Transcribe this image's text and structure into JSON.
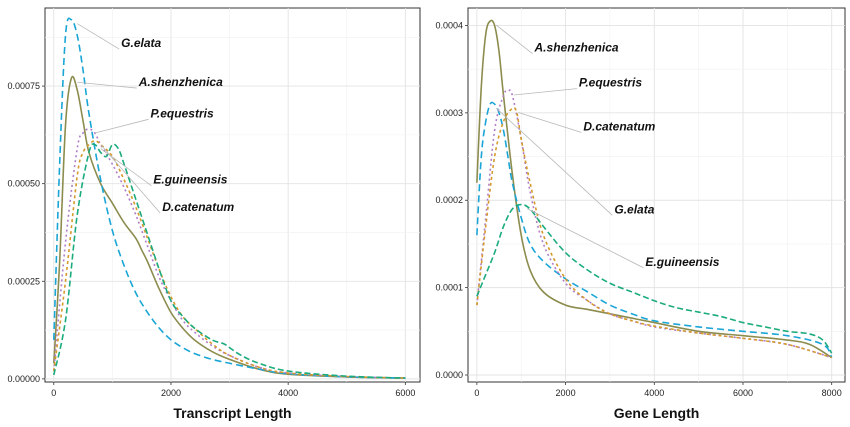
{
  "chart_data": [
    {
      "type": "line",
      "panel": "left",
      "xlabel": "Transcript Length",
      "ylabel": "",
      "xlim": [
        -150,
        6250
      ],
      "ylim": [
        -8e-06,
        0.00095
      ],
      "xticks": [
        0,
        2000,
        4000,
        6000
      ],
      "yticks": [
        0,
        0.00025,
        0.0005,
        0.00075
      ],
      "ytick_labels": [
        "0.00000",
        "0.00025",
        "0.00050",
        "0.00075"
      ],
      "xtick_labels": [
        "0",
        "2000",
        "4000",
        "6000"
      ],
      "grid": true,
      "legend": "none",
      "series": [
        {
          "name": "A.shenzhenica",
          "color": "#8c8c4e",
          "dash": "solid",
          "x": [
            0,
            100,
            200,
            300,
            400,
            500,
            600,
            800,
            1000,
            1200,
            1400,
            1500,
            1600,
            1800,
            2000,
            2200,
            2400,
            2700,
            3000,
            3500,
            4000,
            5000,
            6000
          ],
          "y": [
            4e-05,
            0.0003,
            0.00065,
            0.00077,
            0.00074,
            0.00066,
            0.00058,
            0.0005,
            0.00045,
            0.0004,
            0.00036,
            0.00033,
            0.0003,
            0.00023,
            0.00017,
            0.00013,
            0.0001,
            7e-05,
            5e-05,
            2.5e-05,
            1.2e-05,
            5e-06,
            2e-06
          ]
        },
        {
          "name": "G.elata",
          "color": "#1aa5d6",
          "dash": "7,4",
          "x": [
            0,
            100,
            200,
            300,
            400,
            500,
            600,
            800,
            1000,
            1200,
            1400,
            1600,
            1800,
            2000,
            2200,
            2400,
            2700,
            3000,
            3500,
            4000,
            5000,
            6000
          ],
          "y": [
            0.0001,
            0.00055,
            0.00088,
            0.00092,
            0.00088,
            0.00079,
            0.00068,
            0.00051,
            0.00038,
            0.00029,
            0.00022,
            0.00017,
            0.00013,
            0.0001,
            8e-05,
            6.5e-05,
            5e-05,
            4e-05,
            2.5e-05,
            1.3e-05,
            5e-06,
            2e-06
          ]
        },
        {
          "name": "P.equestris",
          "color": "#b07ec8",
          "dash": "2,3",
          "x": [
            0,
            200,
            400,
            500,
            600,
            700,
            800,
            1000,
            1200,
            1400,
            1600,
            1800,
            2000,
            2200,
            2400,
            2700,
            3000,
            3500,
            4000,
            5000,
            6000
          ],
          "y": [
            2e-05,
            0.00035,
            0.00059,
            0.00063,
            0.00064,
            0.00063,
            0.0006,
            0.00055,
            0.00049,
            0.00042,
            0.00034,
            0.00026,
            0.0002,
            0.00015,
            0.00012,
            8.5e-05,
            6e-05,
            3e-05,
            1.5e-05,
            6e-06,
            2e-06
          ]
        },
        {
          "name": "D.catenatum",
          "color": "#d49a2c",
          "dash": "3,3",
          "x": [
            0,
            200,
            400,
            500,
            600,
            700,
            800,
            1000,
            1200,
            1400,
            1600,
            1800,
            2000,
            2200,
            2400,
            2700,
            3000,
            3500,
            4000,
            5000,
            6000
          ],
          "y": [
            2e-05,
            0.00025,
            0.00052,
            0.00058,
            0.0006,
            0.00061,
            0.0006,
            0.00057,
            0.00051,
            0.00044,
            0.00036,
            0.00028,
            0.00021,
            0.00016,
            0.00013,
            9e-05,
            6e-05,
            3e-05,
            1.5e-05,
            6e-06,
            2e-06
          ]
        },
        {
          "name": "E.guineensis",
          "color": "#1bab7e",
          "dash": "6,3",
          "x": [
            0,
            200,
            400,
            600,
            700,
            800,
            900,
            1000,
            1100,
            1200,
            1400,
            1600,
            1800,
            2000,
            2200,
            2400,
            2700,
            2900,
            3000,
            3200,
            3500,
            4000,
            5000,
            6000
          ],
          "y": [
            1e-05,
            0.00015,
            0.00042,
            0.00058,
            0.0006,
            0.00058,
            0.00057,
            0.0006,
            0.00059,
            0.00055,
            0.00046,
            0.00037,
            0.00028,
            0.0002,
            0.00016,
            0.00013,
            0.0001,
            9e-05,
            8e-05,
            6e-05,
            4e-05,
            2e-05,
            7e-06,
            2e-06
          ]
        }
      ],
      "annotations": [
        {
          "text": "G.elata",
          "x": 1150,
          "y": 0.00085
        },
        {
          "text": "A.shenzhenica",
          "x": 1450,
          "y": 0.00075
        },
        {
          "text": "P.equestris",
          "x": 1650,
          "y": 0.00067
        },
        {
          "text": "E.guineensis",
          "x": 1700,
          "y": 0.0005
        },
        {
          "text": "D.catenatum",
          "x": 1850,
          "y": 0.00043
        }
      ]
    },
    {
      "type": "line",
      "panel": "right",
      "xlabel": "Gene Length",
      "ylabel": "",
      "xlim": [
        -200,
        8300
      ],
      "ylim": [
        -8e-06,
        0.00042
      ],
      "xticks": [
        0,
        2000,
        4000,
        6000,
        8000
      ],
      "yticks": [
        0,
        0.0001,
        0.0002,
        0.0003,
        0.0004
      ],
      "ytick_labels": [
        "0.0000",
        "0.0001",
        "0.0002",
        "0.0003",
        "0.0004"
      ],
      "xtick_labels": [
        "0",
        "2000",
        "4000",
        "6000",
        "8000"
      ],
      "grid": true,
      "legend": "none",
      "series": [
        {
          "name": "A.shenzhenica",
          "color": "#8c8c4e",
          "dash": "solid",
          "x": [
            0,
            100,
            200,
            300,
            400,
            500,
            600,
            800,
            1000,
            1200,
            1500,
            2000,
            2500,
            3000,
            3500,
            4000,
            5000,
            6000,
            7000,
            7500,
            8000
          ],
          "y": [
            0.00022,
            0.00033,
            0.00039,
            0.000405,
            0.0004,
            0.00037,
            0.00032,
            0.00023,
            0.00016,
            0.00012,
            9.5e-05,
            8e-05,
            7.5e-05,
            7e-05,
            6.5e-05,
            6e-05,
            5e-05,
            4.5e-05,
            4e-05,
            3.5e-05,
            2e-05
          ]
        },
        {
          "name": "G.elata",
          "color": "#1aa5d6",
          "dash": "7,4",
          "x": [
            0,
            100,
            200,
            300,
            400,
            500,
            600,
            700,
            800,
            1000,
            1200,
            1500,
            2000,
            2500,
            3000,
            3500,
            4000,
            5000,
            6000,
            7000,
            7800,
            8000
          ],
          "y": [
            0.00016,
            0.00025,
            0.00029,
            0.00031,
            0.00031,
            0.0003,
            0.00028,
            0.00025,
            0.00022,
            0.00018,
            0.00015,
            0.00013,
            0.00011,
            9.5e-05,
            8e-05,
            7e-05,
            6.2e-05,
            5.5e-05,
            5e-05,
            4.5e-05,
            3.5e-05,
            2e-05
          ]
        },
        {
          "name": "P.equestris",
          "color": "#b07ec8",
          "dash": "2,3",
          "x": [
            0,
            200,
            400,
            600,
            700,
            800,
            1000,
            1200,
            1500,
            2000,
            2500,
            3000,
            3500,
            4000,
            5000,
            6000,
            7000,
            8000
          ],
          "y": [
            8e-05,
            0.00018,
            0.00028,
            0.00032,
            0.000325,
            0.00032,
            0.00027,
            0.00021,
            0.00015,
            0.000105,
            8.5e-05,
            7e-05,
            6.2e-05,
            5.5e-05,
            4.8e-05,
            4.2e-05,
            3.5e-05,
            2e-05
          ]
        },
        {
          "name": "D.catenatum",
          "color": "#d49a2c",
          "dash": "3,3",
          "x": [
            0,
            200,
            400,
            600,
            800,
            900,
            1000,
            1200,
            1500,
            2000,
            2500,
            3000,
            3500,
            4000,
            5000,
            6000,
            7000,
            8000
          ],
          "y": [
            8e-05,
            0.00017,
            0.00025,
            0.00029,
            0.000305,
            0.0003,
            0.00027,
            0.00022,
            0.00016,
            0.00011,
            8.5e-05,
            7e-05,
            6.2e-05,
            5.6e-05,
            4.8e-05,
            4.2e-05,
            3.5e-05,
            2e-05
          ]
        },
        {
          "name": "E.guineensis",
          "color": "#1bab7e",
          "dash": "6,3",
          "x": [
            0,
            200,
            400,
            600,
            800,
            1000,
            1200,
            1500,
            2000,
            2500,
            3000,
            3500,
            4000,
            4500,
            5000,
            5500,
            6000,
            6500,
            7000,
            7500,
            7800,
            8000
          ],
          "y": [
            9e-05,
            0.000115,
            0.00014,
            0.00017,
            0.00019,
            0.000195,
            0.00019,
            0.00017,
            0.00014,
            0.00012,
            0.000105,
            9.5e-05,
            8.5e-05,
            7.7e-05,
            7.2e-05,
            6.7e-05,
            6e-05,
            5.5e-05,
            5e-05,
            4.7e-05,
            4e-05,
            2.5e-05
          ]
        }
      ],
      "annotations": [
        {
          "text": "A.shenzhenica",
          "x": 1300,
          "y": 0.00037
        },
        {
          "text": "P.equestris",
          "x": 2300,
          "y": 0.00033
        },
        {
          "text": "D.catenatum",
          "x": 2400,
          "y": 0.00028
        },
        {
          "text": "G.elata",
          "x": 3100,
          "y": 0.000185
        },
        {
          "text": "E.guineensis",
          "x": 3800,
          "y": 0.000125
        }
      ]
    }
  ]
}
